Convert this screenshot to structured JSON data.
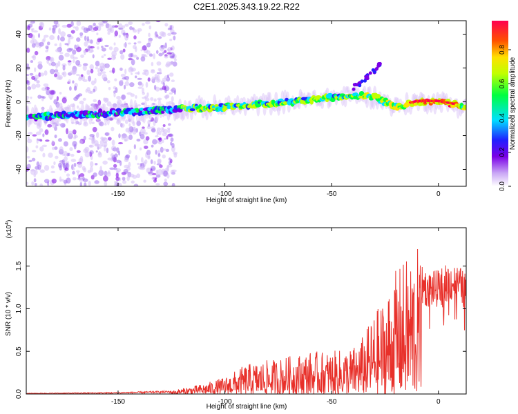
{
  "chart_data": [
    {
      "type": "heatmap",
      "title": "C2E1.2025.343.19.22.R22",
      "xlabel": "Height of straight line (km)",
      "ylabel": "Frequency (Hz)",
      "xlim": [
        -193,
        13
      ],
      "ylim": [
        -50,
        48
      ],
      "xticks": [
        -150,
        -100,
        -50,
        0
      ],
      "yticks": [
        -40,
        -20,
        0,
        20,
        40
      ],
      "colorbar": {
        "label": "Normalized spectral amplitude",
        "range": [
          0,
          0.97
        ],
        "ticks": [
          0.0,
          0.2,
          0.4,
          0.6,
          0.8
        ],
        "colors": [
          "#ffffff",
          "#c9a6f5",
          "#7a00e6",
          "#2020ff",
          "#00e0ff",
          "#00ff40",
          "#c0ff00",
          "#ffe000",
          "#ff5000",
          "#ff0050"
        ]
      },
      "ridge": {
        "x": [
          -193,
          -160,
          -130,
          -100,
          -80,
          -60,
          -40,
          -30,
          -20,
          -10,
          0,
          13
        ],
        "y": [
          -9,
          -7,
          -5,
          -3,
          -1,
          1,
          4,
          3,
          -3,
          0,
          0,
          -3
        ]
      },
      "branch": {
        "x": [
          -40,
          -35,
          -30,
          -27
        ],
        "y": [
          8,
          13,
          18,
          24
        ]
      }
    },
    {
      "type": "line",
      "xlabel": "Height of straight line (km)",
      "ylabel": "SNR (10 * v/v)",
      "yscale_label": "(x10",
      "yscale_exp": "4",
      "xlim": [
        -193,
        13
      ],
      "ylim": [
        0,
        1.95
      ],
      "xticks": [
        -150,
        -100,
        -50,
        0
      ],
      "yticks": [
        0.0,
        0.5,
        1.0,
        1.5
      ],
      "envelope": {
        "x": [
          -193,
          -150,
          -125,
          -110,
          -100,
          -90,
          -75,
          -60,
          -50,
          -40,
          -35,
          -30,
          -25,
          -20,
          -15,
          -12,
          -10,
          -8,
          -5,
          0,
          5,
          10,
          13
        ],
        "y": [
          0.01,
          0.02,
          0.04,
          0.12,
          0.2,
          0.35,
          0.42,
          0.5,
          0.5,
          0.55,
          0.7,
          0.95,
          1.15,
          1.45,
          1.6,
          1.7,
          1.75,
          1.5,
          1.45,
          1.45,
          1.55,
          1.5,
          1.4
        ]
      },
      "color": "#e8302a"
    }
  ]
}
